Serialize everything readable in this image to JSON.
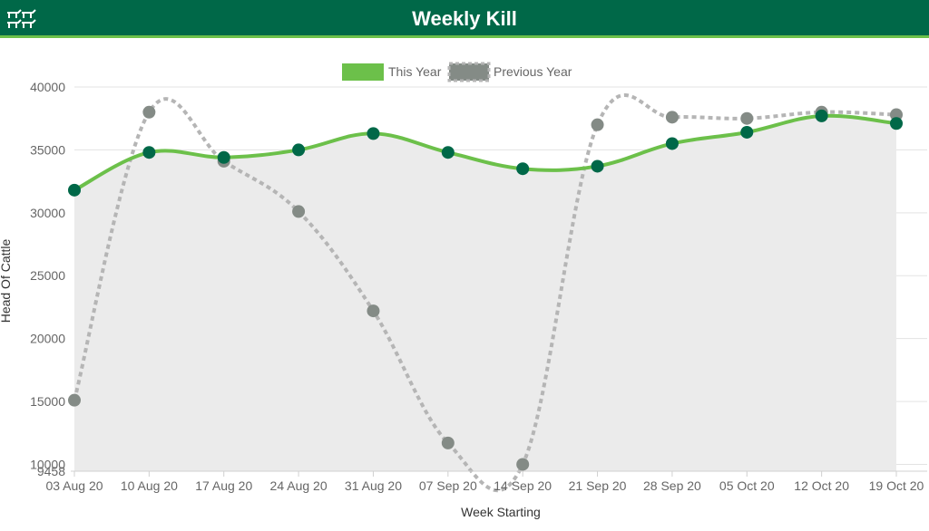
{
  "header": {
    "title": "Weekly Kill",
    "icon": "cattle-icon"
  },
  "chart_data": {
    "type": "line",
    "categories": [
      "03 Aug 20",
      "10 Aug 20",
      "17 Aug 20",
      "24 Aug 20",
      "31 Aug 20",
      "07 Sep 20",
      "14 Sep 20",
      "21 Sep 20",
      "28 Sep 20",
      "05 Oct 20",
      "12 Oct 20",
      "19 Oct 20"
    ],
    "series": [
      {
        "name": "This Year",
        "color": "#6cc04a",
        "marker_color": "#006848",
        "style": "solid",
        "values": [
          31800,
          34800,
          34400,
          35000,
          36300,
          34800,
          33500,
          33700,
          35500,
          36400,
          37700,
          37100
        ]
      },
      {
        "name": "Previous Year",
        "color": "#b5b5b5",
        "marker_color": "#848b86",
        "style": "dashed",
        "values": [
          15100,
          38000,
          34100,
          30100,
          22200,
          11700,
          10000,
          37000,
          37600,
          37500,
          38000,
          37800
        ]
      }
    ],
    "xlabel": "Week Starting",
    "ylabel": "Head Of Cattle",
    "ylim": [
      9458,
      40000
    ],
    "yticks": [
      "40000",
      "35000",
      "30000",
      "25000",
      "20000",
      "15000",
      "10000",
      "9458"
    ],
    "ytick_values": [
      40000,
      35000,
      30000,
      25000,
      20000,
      15000,
      10000,
      9458
    ],
    "grid": true,
    "legend": "top-center",
    "area_fill_color": "#ebebeb"
  }
}
